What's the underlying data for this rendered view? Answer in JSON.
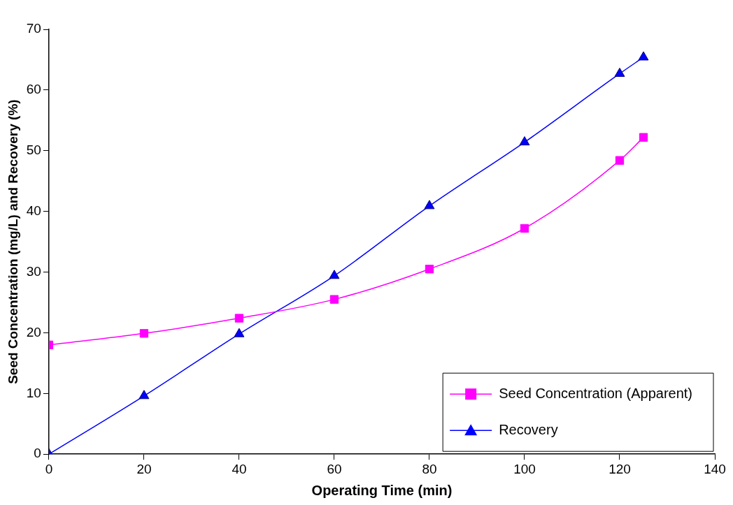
{
  "chart_data": {
    "type": "line",
    "xlabel": "Operating Time (min)",
    "ylabel": "Seed Concentration (mg/L) and Recovery (%)",
    "x": [
      0,
      20,
      40,
      60,
      80,
      100,
      120,
      125
    ],
    "series": [
      {
        "name": "Seed Concentration (Apparent)",
        "color": "#ff00ff",
        "marker": "square",
        "values": [
          18,
          19.9,
          22.4,
          25.5,
          30.5,
          37.2,
          48.4,
          52.2
        ]
      },
      {
        "name": "Recovery",
        "color": "#0000ff",
        "marker": "triangle",
        "values": [
          0,
          9.6,
          19.8,
          29.4,
          40.9,
          51.4,
          62.7,
          65.4
        ]
      }
    ],
    "xlim": [
      0,
      140
    ],
    "xticks": [
      0,
      20,
      40,
      60,
      80,
      100,
      120,
      140
    ],
    "ylim": [
      0,
      70
    ],
    "yticks": [
      0,
      10,
      20,
      30,
      40,
      50,
      60,
      70
    ],
    "grid": false,
    "legend": "bottom right",
    "line_style": "solid"
  }
}
